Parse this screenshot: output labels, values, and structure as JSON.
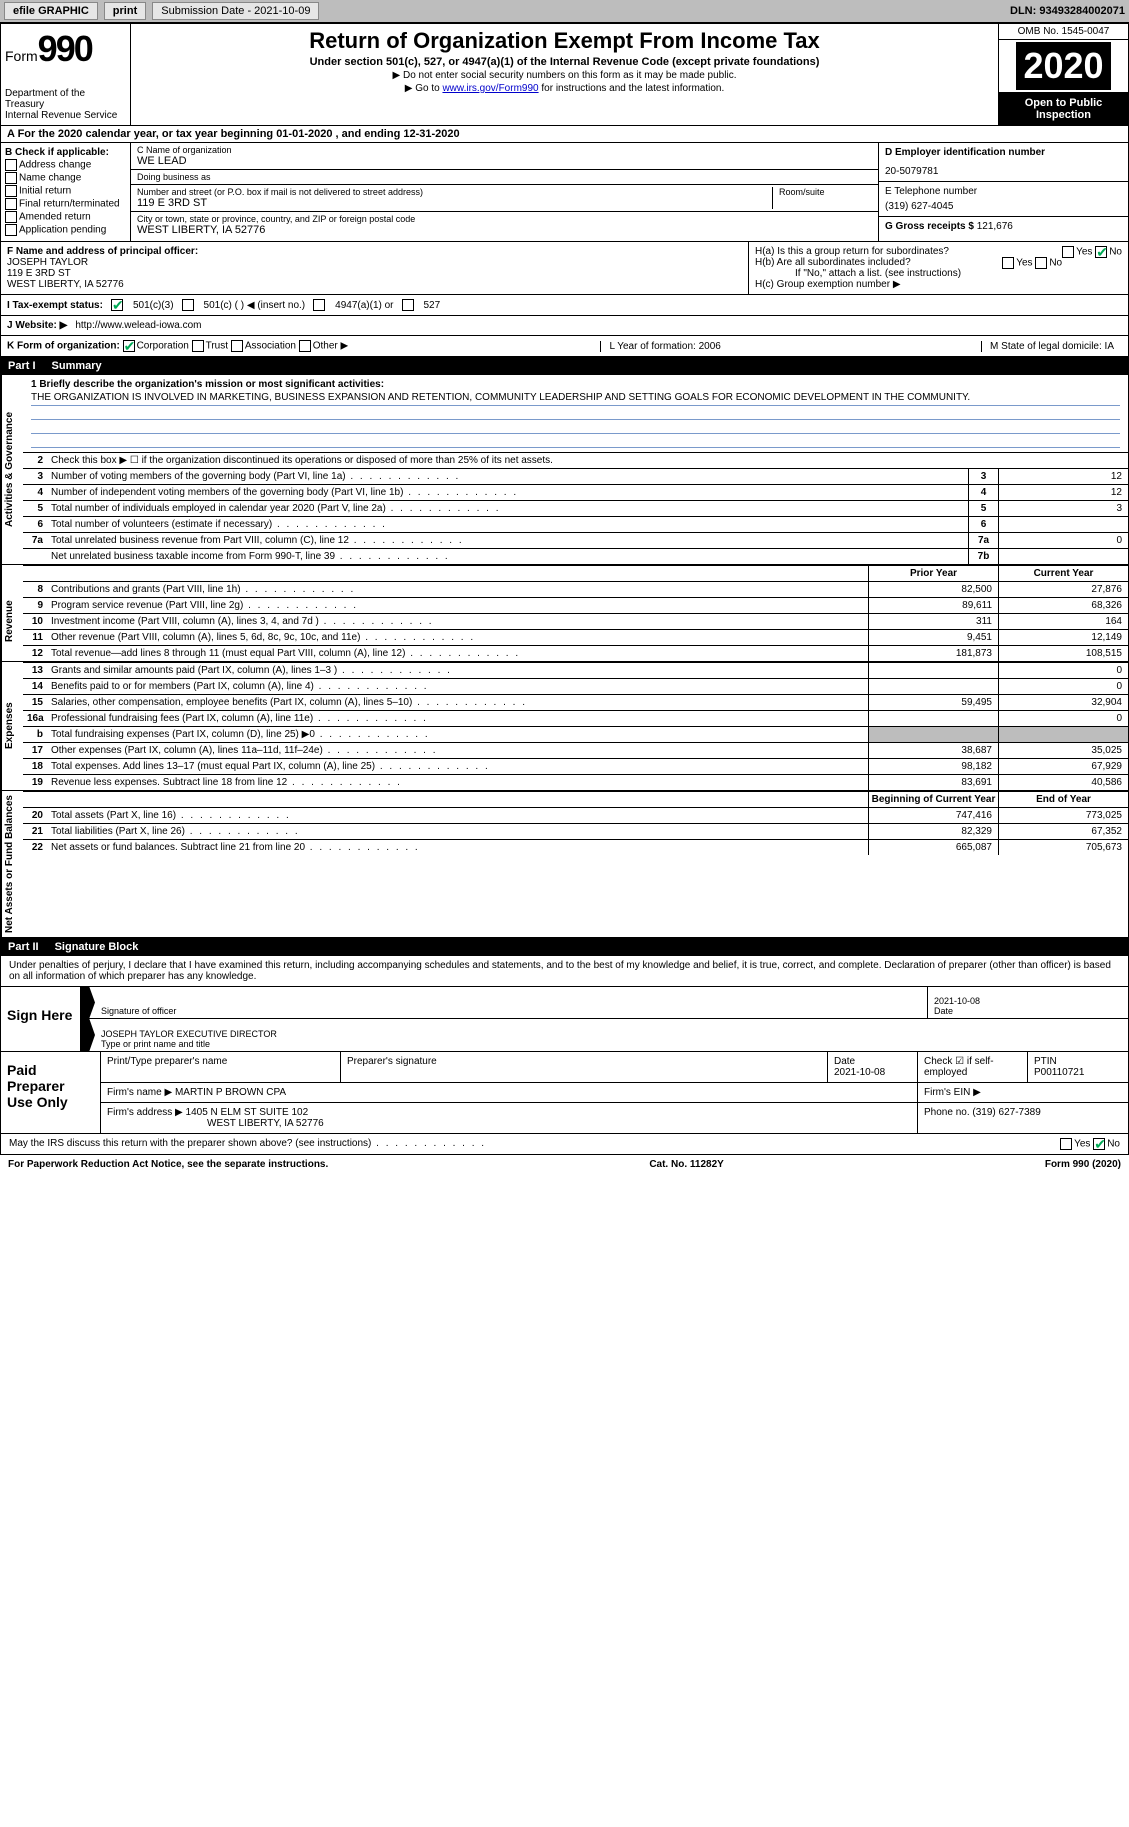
{
  "topbar": {
    "efile": "efile GRAPHIC",
    "print": "print",
    "submission": "Submission Date - 2021-10-09",
    "dln": "DLN: 93493284002071"
  },
  "header": {
    "form_prefix": "Form",
    "form_number": "990",
    "dept": "Department of the Treasury\nInternal Revenue Service",
    "title": "Return of Organization Exempt From Income Tax",
    "subtitle": "Under section 501(c), 527, or 4947(a)(1) of the Internal Revenue Code (except private foundations)",
    "note1": "▶ Do not enter social security numbers on this form as it may be made public.",
    "note2_pre": "▶ Go to ",
    "note2_link": "www.irs.gov/Form990",
    "note2_post": " for instructions and the latest information.",
    "omb": "OMB No. 1545-0047",
    "year": "2020",
    "open_public": "Open to Public Inspection"
  },
  "line_a": "A For the 2020 calendar year, or tax year beginning 01-01-2020   , and ending 12-31-2020",
  "box_b": {
    "title": "B Check if applicable:",
    "items": [
      "Address change",
      "Name change",
      "Initial return",
      "Final return/terminated",
      "Amended return",
      "Application pending"
    ]
  },
  "org": {
    "name_label": "C Name of organization",
    "name": "WE LEAD",
    "dba_label": "Doing business as",
    "dba": "",
    "addr_label": "Number and street (or P.O. box if mail is not delivered to street address)",
    "room_label": "Room/suite",
    "addr": "119 E 3RD ST",
    "city_label": "City or town, state or province, country, and ZIP or foreign postal code",
    "city": "WEST LIBERTY, IA  52776"
  },
  "right": {
    "ein_label": "D Employer identification number",
    "ein": "20-5079781",
    "tel_label": "E Telephone number",
    "tel": "(319) 627-4045",
    "gross_label": "G Gross receipts $",
    "gross": "121,676"
  },
  "officer": {
    "label": "F Name and address of principal officer:",
    "name": "JOSEPH TAYLOR",
    "addr1": "119 E 3RD ST",
    "addr2": "WEST LIBERTY, IA  52776"
  },
  "h": {
    "ha": "H(a)  Is this a group return for subordinates?",
    "hb": "H(b)  Are all subordinates included?",
    "hnote": "If \"No,\" attach a list. (see instructions)",
    "hc": "H(c)  Group exemption number ▶"
  },
  "status": {
    "label": "I   Tax-exempt status:",
    "c3": "501(c)(3)",
    "c": "501(c) (  ) ◀ (insert no.)",
    "a1": "4947(a)(1) or",
    "s527": "527"
  },
  "website": {
    "label": "J   Website: ▶",
    "url": "http://www.welead-iowa.com"
  },
  "korg": {
    "k": "K Form of organization:",
    "corp": "Corporation",
    "trust": "Trust",
    "assoc": "Association",
    "other": "Other ▶",
    "l": "L Year of formation: 2006",
    "m": "M State of legal domicile: IA"
  },
  "part1": {
    "num": "Part I",
    "title": "Summary"
  },
  "mission": {
    "label": "1   Briefly describe the organization's mission or most significant activities:",
    "text": "THE ORGANIZATION IS INVOLVED IN MARKETING, BUSINESS EXPANSION AND RETENTION, COMMUNITY LEADERSHIP AND SETTING GOALS FOR ECONOMIC DEVELOPMENT IN THE COMMUNITY."
  },
  "gov": {
    "line2": "Check this box ▶ ☐  if the organization discontinued its operations or disposed of more than 25% of its net assets.",
    "rows": [
      {
        "n": "3",
        "d": "Number of voting members of the governing body (Part VI, line 1a)",
        "b": "3",
        "v": "12"
      },
      {
        "n": "4",
        "d": "Number of independent voting members of the governing body (Part VI, line 1b)",
        "b": "4",
        "v": "12"
      },
      {
        "n": "5",
        "d": "Total number of individuals employed in calendar year 2020 (Part V, line 2a)",
        "b": "5",
        "v": "3"
      },
      {
        "n": "6",
        "d": "Total number of volunteers (estimate if necessary)",
        "b": "6",
        "v": ""
      },
      {
        "n": "7a",
        "d": "Total unrelated business revenue from Part VIII, column (C), line 12",
        "b": "7a",
        "v": "0"
      },
      {
        "n": "",
        "d": "Net unrelated business taxable income from Form 990-T, line 39",
        "b": "7b",
        "v": ""
      }
    ]
  },
  "cols": {
    "prior": "Prior Year",
    "current": "Current Year"
  },
  "revenue": {
    "label": "Revenue",
    "rows": [
      {
        "n": "8",
        "d": "Contributions and grants (Part VIII, line 1h)",
        "p": "82,500",
        "c": "27,876"
      },
      {
        "n": "9",
        "d": "Program service revenue (Part VIII, line 2g)",
        "p": "89,611",
        "c": "68,326"
      },
      {
        "n": "10",
        "d": "Investment income (Part VIII, column (A), lines 3, 4, and 7d )",
        "p": "311",
        "c": "164"
      },
      {
        "n": "11",
        "d": "Other revenue (Part VIII, column (A), lines 5, 6d, 8c, 9c, 10c, and 11e)",
        "p": "9,451",
        "c": "12,149"
      },
      {
        "n": "12",
        "d": "Total revenue—add lines 8 through 11 (must equal Part VIII, column (A), line 12)",
        "p": "181,873",
        "c": "108,515"
      }
    ]
  },
  "expenses": {
    "label": "Expenses",
    "rows": [
      {
        "n": "13",
        "d": "Grants and similar amounts paid (Part IX, column (A), lines 1–3 )",
        "p": "",
        "c": "0"
      },
      {
        "n": "14",
        "d": "Benefits paid to or for members (Part IX, column (A), line 4)",
        "p": "",
        "c": "0"
      },
      {
        "n": "15",
        "d": "Salaries, other compensation, employee benefits (Part IX, column (A), lines 5–10)",
        "p": "59,495",
        "c": "32,904"
      },
      {
        "n": "16a",
        "d": "Professional fundraising fees (Part IX, column (A), line 11e)",
        "p": "",
        "c": "0"
      },
      {
        "n": "b",
        "d": "Total fundraising expenses (Part IX, column (D), line 25) ▶0",
        "p": "SHADE",
        "c": "SHADE"
      },
      {
        "n": "17",
        "d": "Other expenses (Part IX, column (A), lines 11a–11d, 11f–24e)",
        "p": "38,687",
        "c": "35,025"
      },
      {
        "n": "18",
        "d": "Total expenses. Add lines 13–17 (must equal Part IX, column (A), line 25)",
        "p": "98,182",
        "c": "67,929"
      },
      {
        "n": "19",
        "d": "Revenue less expenses. Subtract line 18 from line 12",
        "p": "83,691",
        "c": "40,586"
      }
    ]
  },
  "netassets": {
    "label": "Net Assets or Fund Balances",
    "col1": "Beginning of Current Year",
    "col2": "End of Year",
    "rows": [
      {
        "n": "20",
        "d": "Total assets (Part X, line 16)",
        "p": "747,416",
        "c": "773,025"
      },
      {
        "n": "21",
        "d": "Total liabilities (Part X, line 26)",
        "p": "82,329",
        "c": "67,352"
      },
      {
        "n": "22",
        "d": "Net assets or fund balances. Subtract line 21 from line 20",
        "p": "665,087",
        "c": "705,673"
      }
    ]
  },
  "part2": {
    "num": "Part II",
    "title": "Signature Block",
    "decl": "Under penalties of perjury, I declare that I have examined this return, including accompanying schedules and statements, and to the best of my knowledge and belief, it is true, correct, and complete. Declaration of preparer (other than officer) is based on all information of which preparer has any knowledge."
  },
  "sign": {
    "here": "Sign Here",
    "sig_label": "Signature of officer",
    "date": "2021-10-08",
    "date_label": "Date",
    "name": "JOSEPH TAYLOR  EXECUTIVE DIRECTOR",
    "name_label": "Type or print name and title"
  },
  "preparer": {
    "title": "Paid Preparer Use Only",
    "h1": "Print/Type preparer's name",
    "h2": "Preparer's signature",
    "h3": "Date",
    "h3v": "2021-10-08",
    "h4": "Check ☑ if self-employed",
    "h5": "PTIN",
    "h5v": "P00110721",
    "firm_label": "Firm's name    ▶",
    "firm": "MARTIN P BROWN CPA",
    "ein_label": "Firm's EIN ▶",
    "addr_label": "Firm's address ▶",
    "addr": "1405 N ELM ST SUITE 102",
    "addr2": "WEST LIBERTY, IA  52776",
    "phone_label": "Phone no.",
    "phone": "(319) 627-7389"
  },
  "discuss": "May the IRS discuss this return with the preparer shown above? (see instructions)",
  "footer": {
    "left": "For Paperwork Reduction Act Notice, see the separate instructions.",
    "mid": "Cat. No. 11282Y",
    "right": "Form 990 (2020)"
  }
}
